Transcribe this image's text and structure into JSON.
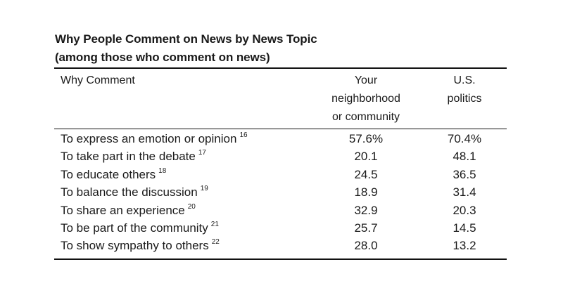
{
  "table": {
    "title_line1": "Why People Comment on News by News Topic",
    "title_line2": "(among those who comment on news)",
    "headers": {
      "why": "Why Comment",
      "col1": [
        "Your",
        "neighborhood",
        "or community"
      ],
      "col2": [
        "U.S.",
        "politics"
      ]
    },
    "rows": [
      {
        "label": "To express an emotion or opinion",
        "note": "16",
        "col1": "57.6%",
        "col2": "70.4%"
      },
      {
        "label": "To take part in the debate",
        "note": "17",
        "col1": "20.1",
        "col2": "48.1"
      },
      {
        "label": "To educate others",
        "note": "18",
        "col1": "24.5",
        "col2": "36.5"
      },
      {
        "label": "To balance the discussion",
        "note": "19",
        "col1": "18.9",
        "col2": "31.4"
      },
      {
        "label": "To share an experience",
        "note": "20",
        "col1": "32.9",
        "col2": "20.3"
      },
      {
        "label": "To be part of the community",
        "note": "21",
        "col1": "25.7",
        "col2": "14.5"
      },
      {
        "label": "To show sympathy to others",
        "note": "22",
        "col1": "28.0",
        "col2": "13.2"
      }
    ]
  }
}
